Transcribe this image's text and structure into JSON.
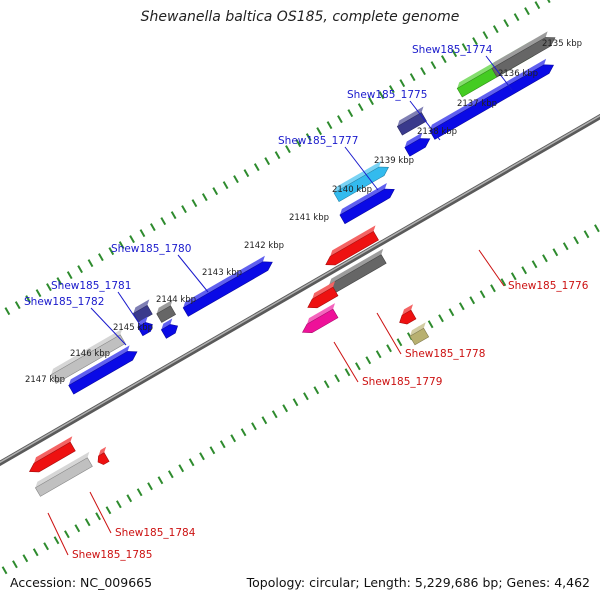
{
  "title": "Shewanella baltica OS185, complete genome",
  "accession": "Accession: NC_009665",
  "summary": "Topology: circular; Length: 5,229,686 bp; Genes: 4,462",
  "colors": {
    "backbone": "#808080",
    "tick": "#2e8b2e",
    "forward_label": "#1a1acc",
    "reverse_label": "#cc1111"
  },
  "scale_labels": [
    "2135 kbp",
    "2136 kbp",
    "2137 kbp",
    "2138 kbp",
    "2139 kbp",
    "2140 kbp",
    "2141 kbp",
    "2142 kbp",
    "2143 kbp",
    "2144 kbp",
    "2145 kbp",
    "2146 kbp",
    "2147 kbp"
  ],
  "gene_labels_forward": [
    "Shew185_1774",
    "Shew185_1775",
    "Shew185_1777",
    "Shew185_1780",
    "Shew185_1781",
    "Shew185_1782"
  ],
  "gene_labels_reverse": [
    "Shew185_1776",
    "Shew185_1778",
    "Shew185_1779",
    "Shew185_1784",
    "Shew185_1785"
  ],
  "feature_colors": {
    "blue": "#0a0ae6",
    "green": "#44cc22",
    "navy": "#3a3a8c",
    "cyan": "#33bbee",
    "gray": "#666666",
    "lightgray": "#c0c0c0",
    "red": "#ee1111",
    "magenta": "#ee1199",
    "olive": "#b8b070"
  }
}
